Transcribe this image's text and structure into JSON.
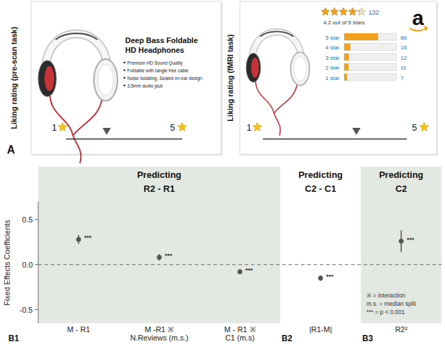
{
  "panels": [
    {
      "label": "A",
      "y_label": "Liking rating (pre-scan task)",
      "title_lines": [
        "Deep Bass Foldable",
        "HD Headphones"
      ],
      "bullets": [
        "Premium HD Sound Quality",
        "Foldable with tangle free cable",
        "Noise Isolating, Sealed on ear design",
        "3.5mm audio jack"
      ],
      "scale": {
        "min": 1,
        "max": 5,
        "rating": 2.4
      }
    },
    {
      "y_label": "Liking rating (fMRI task)",
      "stars": 4.2,
      "review_count": 132,
      "average_text": "4.2 out of 5 stars",
      "logo": "a",
      "histogram": {
        "categories": [
          "5 star",
          "4 star",
          "3 star",
          "2 star",
          "1 star"
        ],
        "values": [
          86,
          16,
          12,
          11,
          7
        ]
      },
      "scale": {
        "min": 1,
        "max": 5,
        "rating": 3.6
      }
    }
  ],
  "chart_data": {
    "type": "point",
    "y_label": "Fixed Effects Coefficients",
    "categories": [
      "M - R1",
      "M -R1 ※\nN.Reviews (m.s.)",
      "M - R1 ※\nC1 (m.s)",
      "|R1-M|",
      "R2²"
    ],
    "values": [
      0.28,
      0.08,
      -0.08,
      -0.15,
      0.26
    ],
    "errors": [
      0.05,
      0.035,
      0.025,
      0.03,
      0.12
    ],
    "significance": [
      "***",
      "***",
      "***",
      "***",
      "***"
    ],
    "color": "#555555",
    "ylim": [
      -0.65,
      0.7
    ],
    "yticks": [
      {
        "value": -0.5,
        "label": "-0.5"
      },
      {
        "value": 0,
        "label": "0.0"
      },
      {
        "value": 0.5,
        "label": "0.5"
      }
    ],
    "reference_line": 0,
    "groups": [
      {
        "title": "Predicting",
        "target": "R2 - R1",
        "label": "B1"
      },
      {
        "title": "Predicting",
        "target": "C2 - C1",
        "label": "B2"
      },
      {
        "title": "Predicting",
        "target": "C2",
        "label": "B3"
      }
    ],
    "notes": [
      "※ = interaction",
      "m.s. = median split",
      "*** = p < 0.001"
    ]
  }
}
